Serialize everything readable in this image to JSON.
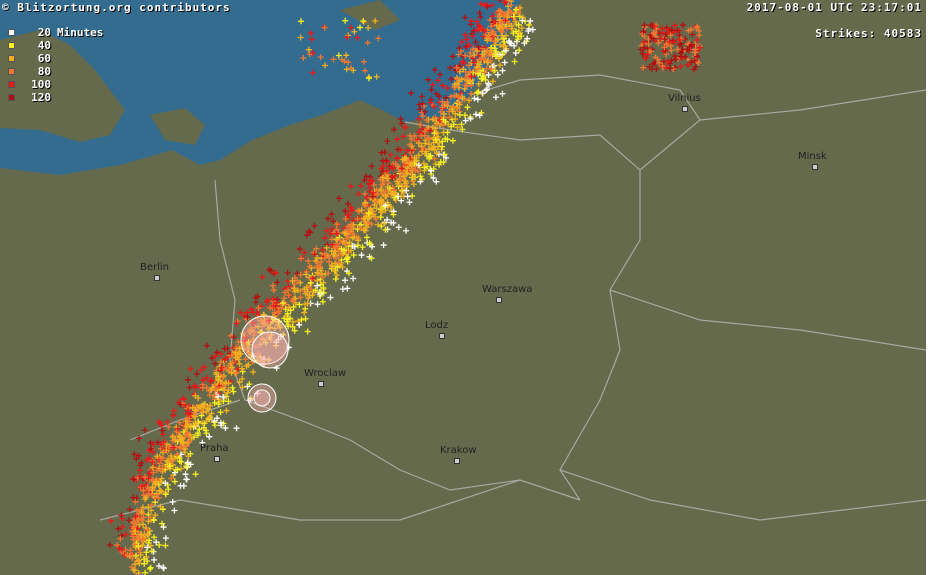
{
  "attribution": "© Blitzortung.org contributors",
  "timestamp": "2017-08-01 UTC 23:17:01",
  "strikes_label": "Strikes: 40583",
  "legend": {
    "unit": "Minutes",
    "items": [
      {
        "label": "20",
        "color": "#ffffff"
      },
      {
        "label": "40",
        "color": "#f5f020"
      },
      {
        "label": "60",
        "color": "#f0b020"
      },
      {
        "label": "80",
        "color": "#f07830"
      },
      {
        "label": "100",
        "color": "#e81818"
      },
      {
        "label": "120",
        "color": "#b01010"
      }
    ]
  },
  "cities": [
    "Berlin",
    "Warszawa",
    "Lodz",
    "Wroclaw",
    "Krakow",
    "Praha",
    "Vilnius",
    "Minsk"
  ],
  "colors": {
    "land": "#656a4c",
    "sea": "#336c8e",
    "border": "#a8a8a0"
  }
}
